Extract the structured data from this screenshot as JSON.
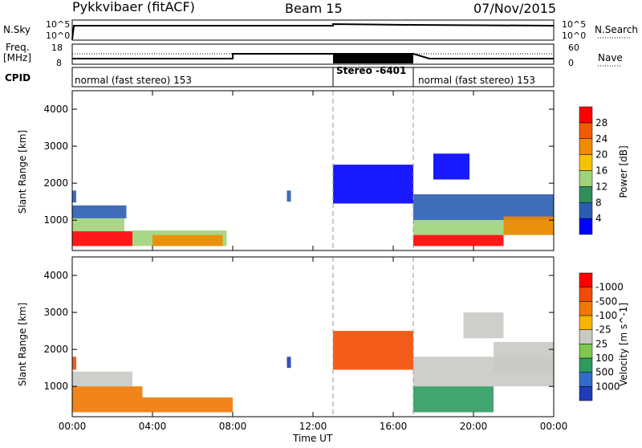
{
  "header": {
    "title": "Pykkvibaer (fitACF)",
    "beam": "Beam 15",
    "date": "07/Nov/2015"
  },
  "strip_sky": {
    "left_label": "N.Sky",
    "right_label": "N.Search",
    "left_ticks": [
      "10^5",
      "10^0"
    ],
    "right_ticks": [
      "10^5",
      "10^0"
    ]
  },
  "strip_freq": {
    "left_label": "Freq.",
    "left_unit": "[MHz]",
    "right_label": "Nave",
    "left_ticks": [
      "18",
      "8"
    ],
    "right_ticks": [
      "60",
      "0"
    ]
  },
  "cpid": {
    "label": "CPID",
    "segments": [
      {
        "label": "normal (fast stereo) 153",
        "start_hour": 0,
        "end_hour": 13.0,
        "style": "normal"
      },
      {
        "label": "Stereo -6401",
        "start_hour": 13.0,
        "end_hour": 17.0,
        "style": "stereo"
      },
      {
        "label": "normal (fast stereo) 153",
        "start_hour": 17.0,
        "end_hour": 24,
        "style": "normal"
      }
    ]
  },
  "x_axis": {
    "label": "Time UT",
    "range_hours": [
      0,
      24
    ],
    "tick_labels": [
      "00:00",
      "04:00",
      "08:00",
      "12:00",
      "16:00",
      "20:00",
      "00:00"
    ],
    "tick_hours": [
      0,
      4,
      8,
      12,
      16,
      20,
      24
    ]
  },
  "chart_data": [
    {
      "type": "heatmap",
      "ylabel": "Slant Range [km]",
      "ylim": [
        180,
        4500
      ],
      "yticks": [
        1000,
        2000,
        3000,
        4000
      ],
      "colorbar": {
        "label": "Power [dB]",
        "levels": [
          "4",
          "8",
          "12",
          "16",
          "20",
          "24",
          "28"
        ],
        "colors": [
          "#0000ff",
          "#2a5db0",
          "#2f8e5a",
          "#9fd47a",
          "#f5c400",
          "#f08a00",
          "#f25a00",
          "#ff0000"
        ]
      },
      "regions": [
        {
          "t": [
            0.0,
            0.2
          ],
          "r": [
            1480,
            1800
          ],
          "level": 1
        },
        {
          "t": [
            0.0,
            2.7
          ],
          "r": [
            1050,
            1400
          ],
          "level": 1
        },
        {
          "t": [
            0.0,
            2.6
          ],
          "r": [
            700,
            1050
          ],
          "level": 3
        },
        {
          "t": [
            0.0,
            3.0
          ],
          "r": [
            300,
            700
          ],
          "level": 7
        },
        {
          "t": [
            3.0,
            7.7
          ],
          "r": [
            300,
            720
          ],
          "level": 3
        },
        {
          "t": [
            4.0,
            7.5
          ],
          "r": [
            300,
            600
          ],
          "level": 5
        },
        {
          "t": [
            10.7,
            10.9
          ],
          "r": [
            1500,
            1800
          ],
          "level": 1
        },
        {
          "t": [
            13.0,
            17.0
          ],
          "r": [
            1450,
            2500
          ],
          "level": 0
        },
        {
          "t": [
            17.0,
            24.0
          ],
          "r": [
            1000,
            1700
          ],
          "level": 1
        },
        {
          "t": [
            17.0,
            24.0
          ],
          "r": [
            600,
            1000
          ],
          "level": 3
        },
        {
          "t": [
            17.0,
            21.5
          ],
          "r": [
            300,
            600
          ],
          "level": 7
        },
        {
          "t": [
            21.5,
            24.0
          ],
          "r": [
            600,
            1100
          ],
          "level": 5
        },
        {
          "t": [
            18.0,
            19.8
          ],
          "r": [
            2100,
            2800
          ],
          "level": 0
        }
      ]
    },
    {
      "type": "heatmap",
      "ylabel": "Slant Range [km]",
      "ylim": [
        180,
        4500
      ],
      "yticks": [
        1000,
        2000,
        3000,
        4000
      ],
      "colorbar": {
        "label": "Velocity [m s^-1]",
        "levels": [
          "1000",
          "500",
          "100",
          "25",
          "-25",
          "-100",
          "-500",
          "-1000"
        ],
        "colors": [
          "#1f3bb8",
          "#2f6ec8",
          "#2e9a5e",
          "#7ec850",
          "#c9c9c4",
          "#f5b400",
          "#f07800",
          "#f24a00",
          "#ff0000"
        ]
      },
      "regions": [
        {
          "t": [
            0.0,
            0.2
          ],
          "r": [
            1450,
            1800
          ],
          "level": 7
        },
        {
          "t": [
            0.0,
            3.0
          ],
          "r": [
            1000,
            1400
          ],
          "level": 4
        },
        {
          "t": [
            0.0,
            3.5
          ],
          "r": [
            300,
            1000
          ],
          "level": 6
        },
        {
          "t": [
            3.5,
            8.0
          ],
          "r": [
            300,
            700
          ],
          "level": 6
        },
        {
          "t": [
            10.7,
            10.9
          ],
          "r": [
            1500,
            1800
          ],
          "level": 0
        },
        {
          "t": [
            13.0,
            17.0
          ],
          "r": [
            1450,
            2500
          ],
          "level": 7
        },
        {
          "t": [
            17.0,
            24.0
          ],
          "r": [
            1000,
            1800
          ],
          "level": 4
        },
        {
          "t": [
            17.0,
            21.0
          ],
          "r": [
            300,
            1000
          ],
          "level": 2
        },
        {
          "t": [
            21.0,
            24.0
          ],
          "r": [
            1400,
            2200
          ],
          "level": 4
        },
        {
          "t": [
            19.5,
            21.5
          ],
          "r": [
            2300,
            3000
          ],
          "level": 4
        }
      ]
    }
  ]
}
